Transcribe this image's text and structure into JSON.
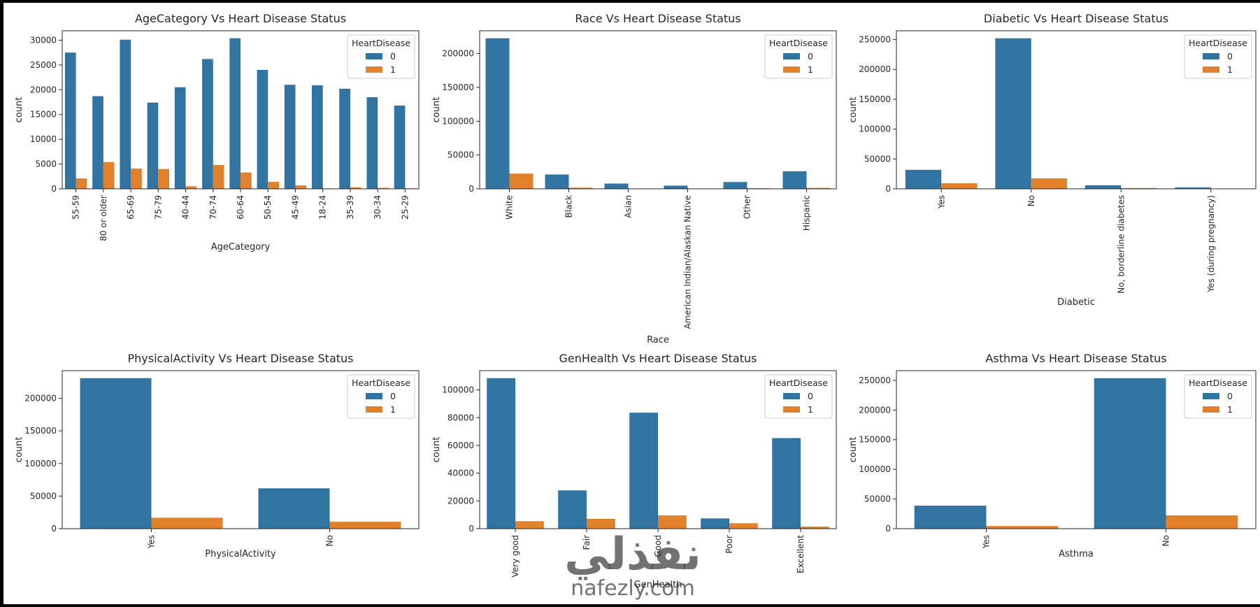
{
  "colors": {
    "series0": "#3274a1",
    "series1": "#e1812c",
    "frame": "#262626",
    "background": "#ffffff"
  },
  "chart_data": [
    {
      "type": "bar",
      "title": "AgeCategory Vs Heart Disease Status",
      "xlabel": "AgeCategory",
      "ylabel": "count",
      "categories": [
        "55-59",
        "80 or older",
        "65-69",
        "75-79",
        "40-44",
        "70-74",
        "60-64",
        "50-54",
        "45-49",
        "18-24",
        "35-39",
        "30-34",
        "25-29"
      ],
      "series": [
        {
          "name": "0",
          "values": [
            27500,
            18700,
            30100,
            17400,
            20500,
            26200,
            30400,
            24000,
            21000,
            20900,
            20200,
            18500,
            16800
          ]
        },
        {
          "name": "1",
          "values": [
            2100,
            5400,
            4100,
            4000,
            500,
            4800,
            3300,
            1400,
            700,
            100,
            300,
            200,
            100
          ]
        }
      ],
      "legend_title": "HeartDisease",
      "legend": "top-right",
      "yticks": [
        0,
        5000,
        10000,
        15000,
        20000,
        25000,
        30000
      ],
      "ylim": [
        0,
        31900
      ],
      "x_tick_rotation": "vertical"
    },
    {
      "type": "bar",
      "title": "Race Vs Heart Disease Status",
      "xlabel": "Race",
      "ylabel": "count",
      "categories": [
        "White",
        "Black",
        "Asian",
        "American Indian/Alaskan Native",
        "Other",
        "Hispanic"
      ],
      "series": [
        {
          "name": "0",
          "values": [
            222700,
            21200,
            7800,
            4700,
            10000,
            26000
          ]
        },
        {
          "name": "1",
          "values": [
            22500,
            1700,
            300,
            500,
            900,
            1400
          ]
        }
      ],
      "legend_title": "HeartDisease",
      "legend": "top-right",
      "yticks": [
        0,
        50000,
        100000,
        150000,
        200000
      ],
      "ylim": [
        0,
        233800
      ],
      "x_tick_rotation": "vertical"
    },
    {
      "type": "bar",
      "title": "Diabetic Vs Heart Disease Status",
      "xlabel": "Diabetic",
      "ylabel": "count",
      "categories": [
        "Yes",
        "No",
        "No, borderline diabetes",
        "Yes (during pregnancy)"
      ],
      "series": [
        {
          "name": "0",
          "values": [
            31800,
            252100,
            6000,
            2300
          ]
        },
        {
          "name": "1",
          "values": [
            9300,
            17500,
            1400,
            200
          ]
        }
      ],
      "legend_title": "HeartDisease",
      "legend": "top-right",
      "yticks": [
        0,
        50000,
        100000,
        150000,
        200000,
        250000
      ],
      "ylim": [
        0,
        264700
      ],
      "x_tick_rotation": "vertical"
    },
    {
      "type": "bar",
      "title": "PhysicalActivity Vs Heart Disease Status",
      "xlabel": "PhysicalActivity",
      "ylabel": "count",
      "categories": [
        "Yes",
        "No"
      ],
      "series": [
        {
          "name": "0",
          "values": [
            230900,
            61900
          ]
        },
        {
          "name": "1",
          "values": [
            16800,
            10600
          ]
        }
      ],
      "legend_title": "HeartDisease",
      "legend": "top-right",
      "yticks": [
        0,
        50000,
        100000,
        150000,
        200000
      ],
      "ylim": [
        0,
        242400
      ],
      "x_tick_rotation": "vertical"
    },
    {
      "type": "bar",
      "title": "GenHealth Vs Heart Disease Status",
      "xlabel": "GenHealth",
      "ylabel": "count",
      "categories": [
        "Very good",
        "Fair",
        "Good",
        "Poor",
        "Excellent"
      ],
      "series": [
        {
          "name": "0",
          "values": [
            108500,
            27600,
            83600,
            7400,
            65300
          ]
        },
        {
          "name": "1",
          "values": [
            5400,
            7100,
            9600,
            3900,
            1500
          ]
        }
      ],
      "legend_title": "HeartDisease",
      "legend": "top-right",
      "yticks": [
        0,
        20000,
        40000,
        60000,
        80000,
        100000
      ],
      "ylim": [
        0,
        113900
      ],
      "x_tick_rotation": "vertical"
    },
    {
      "type": "bar",
      "title": "Asthma Vs Heart Disease Status",
      "xlabel": "Asthma",
      "ylabel": "count",
      "categories": [
        "Yes",
        "No"
      ],
      "series": [
        {
          "name": "0",
          "values": [
            38800,
            253700
          ]
        },
        {
          "name": "1",
          "values": [
            4500,
            22400
          ]
        }
      ],
      "legend_title": "HeartDisease",
      "legend": "top-right",
      "yticks": [
        0,
        50000,
        100000,
        150000,
        200000,
        250000
      ],
      "ylim": [
        0,
        266400
      ],
      "x_tick_rotation": "vertical"
    }
  ],
  "watermark": {
    "arabic": "نفذلي",
    "latin": "nafezly.com"
  }
}
